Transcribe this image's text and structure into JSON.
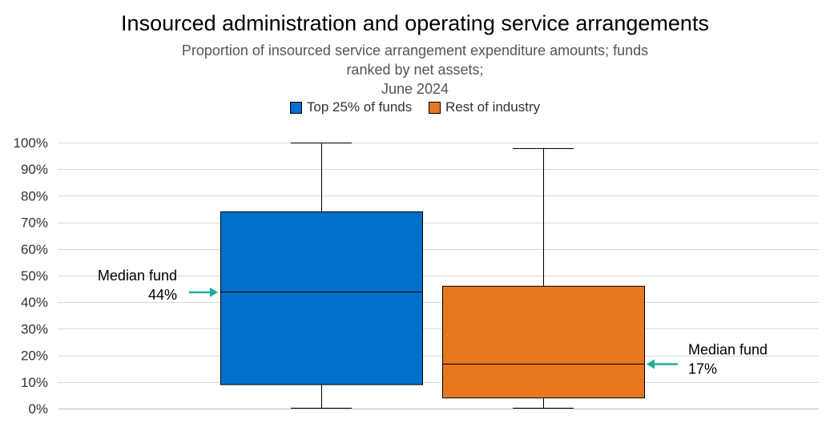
{
  "chart_data": {
    "type": "boxplot",
    "title": "Insourced administration and operating service arrangements",
    "subtitle_line1": "Proportion of insourced service arrangement expenditure amounts; funds ranked by net assets;",
    "subtitle_line2": "June 2024",
    "ylim": [
      0,
      100
    ],
    "y_ticks": [
      0,
      10,
      20,
      30,
      40,
      50,
      60,
      70,
      80,
      90,
      100
    ],
    "y_tick_labels": [
      "0%",
      "10%",
      "20%",
      "30%",
      "40%",
      "50%",
      "60%",
      "70%",
      "80%",
      "90%",
      "100%"
    ],
    "grid": true,
    "legend_position": "top-center",
    "series": [
      {
        "name": "Top 25% of funds",
        "color": "#0070CC",
        "min": 0,
        "q1": 9,
        "median": 44,
        "q3": 74,
        "max": 100
      },
      {
        "name": "Rest of industry",
        "color": "#E87722",
        "min": 0,
        "q1": 4,
        "median": 17,
        "q3": 46,
        "max": 98
      }
    ],
    "annotations": [
      {
        "line1": "Median fund",
        "line2": "44%",
        "series": 0,
        "side": "left",
        "value": 44
      },
      {
        "line1": "Median fund",
        "line2": "17%",
        "series": 1,
        "side": "right",
        "value": 17
      }
    ],
    "arrow_color": "#1AAE9F"
  }
}
